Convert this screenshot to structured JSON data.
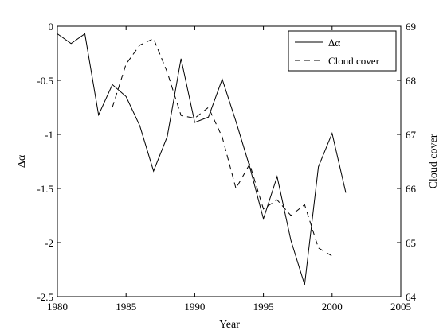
{
  "chart_data": {
    "type": "line",
    "title": "",
    "xlabel": "Year",
    "ylabel_left": "Δα",
    "ylabel_right": "Cloud cover",
    "xlim": [
      1980,
      2005
    ],
    "ylim_left": [
      -2.5,
      0
    ],
    "ylim_right": [
      64,
      69
    ],
    "x_ticks": [
      1980,
      1985,
      1990,
      1995,
      2000,
      2005
    ],
    "y_ticks_left": [
      0,
      -0.5,
      -1,
      -1.5,
      -2,
      -2.5
    ],
    "y_ticks_right": [
      69,
      68,
      67,
      66,
      65,
      64
    ],
    "x_tick_labels": [
      "1980",
      "1985",
      "1990",
      "1995",
      "2000",
      "2005"
    ],
    "y_tick_labels_left": [
      "0",
      "-0.5",
      "-1",
      "-1.5",
      "-2",
      "-2.5"
    ],
    "y_tick_labels_right": [
      "69",
      "68",
      "67",
      "66",
      "65",
      "64"
    ],
    "grid": false,
    "legend_position": "top-right",
    "series": [
      {
        "name": "Δα",
        "axis": "left",
        "style": "solid",
        "color": "#000000",
        "x": [
          1980,
          1981,
          1982,
          1983,
          1984,
          1985,
          1986,
          1987,
          1988,
          1989,
          1990,
          1991,
          1992,
          1993,
          1994,
          1995,
          1996,
          1997,
          1998,
          1999,
          2000,
          2001
        ],
        "y": [
          -0.07,
          -0.16,
          -0.07,
          -0.82,
          -0.54,
          -0.65,
          -0.92,
          -1.34,
          -1.02,
          -0.3,
          -0.89,
          -0.84,
          -0.49,
          -0.88,
          -1.3,
          -1.78,
          -1.39,
          -1.98,
          -2.39,
          -1.3,
          -0.99,
          -1.54
        ]
      },
      {
        "name": "Cloud cover",
        "axis": "right",
        "style": "dashed",
        "color": "#000000",
        "x": [
          1984,
          1985,
          1986,
          1987,
          1988,
          1989,
          1990,
          1991,
          1992,
          1993,
          1994,
          1995,
          1996,
          1997,
          1998,
          1999,
          2000
        ],
        "y": [
          67.5,
          68.3,
          68.65,
          68.77,
          68.15,
          67.35,
          67.3,
          67.5,
          66.95,
          66.0,
          66.45,
          65.62,
          65.79,
          65.5,
          65.7,
          64.9,
          64.75
        ]
      }
    ]
  }
}
